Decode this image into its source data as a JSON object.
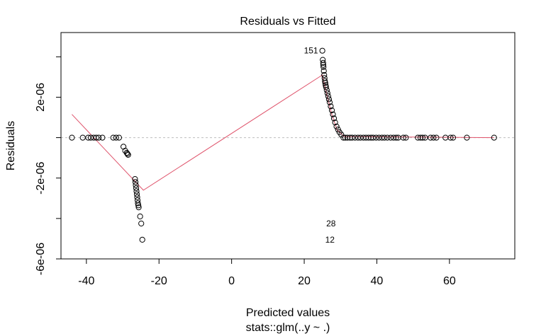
{
  "chart_data": {
    "type": "scatter",
    "title": "Residuals vs Fitted",
    "xlabel": "Predicted values",
    "subtitle": "stats::glm(..y ~ .)",
    "ylabel": "Residuals",
    "xlim": [
      -47,
      78
    ],
    "ylim": [
      -6e-06,
      5.2e-06
    ],
    "x_ticks": [
      -40,
      -20,
      0,
      20,
      40,
      60
    ],
    "x_tick_labels": [
      "-40",
      "-20",
      "0",
      "20",
      "40",
      "60"
    ],
    "y_ticks": [
      -6e-06,
      -2e-06,
      2e-06
    ],
    "y_tick_labels": [
      "-6e-06",
      "-2e-06",
      "2e-06"
    ],
    "y_minor_ticks": [
      -4e-06,
      0,
      4e-06
    ],
    "zero_line": 0,
    "grid": false,
    "colors": {
      "points": "#000000",
      "smooth": "#DF536B",
      "zero_line": "#BEBEBE"
    },
    "points": [
      {
        "x": -44.0,
        "y": 0
      },
      {
        "x": -41.0,
        "y": 0
      },
      {
        "x": -39.5,
        "y": 0
      },
      {
        "x": -38.8,
        "y": 0
      },
      {
        "x": -38.0,
        "y": 0
      },
      {
        "x": -37.3,
        "y": 0
      },
      {
        "x": -36.6,
        "y": 0
      },
      {
        "x": -35.6,
        "y": 0
      },
      {
        "x": -32.6,
        "y": 0
      },
      {
        "x": -31.8,
        "y": 0
      },
      {
        "x": -31.0,
        "y": 0
      },
      {
        "x": -29.8,
        "y": -4.5e-07
      },
      {
        "x": -29.3,
        "y": -6.5e-07
      },
      {
        "x": -28.9,
        "y": -7.5e-07
      },
      {
        "x": -28.7,
        "y": -8e-07
      },
      {
        "x": -28.5,
        "y": -8.5e-07
      },
      {
        "x": -26.6,
        "y": -2.05e-06
      },
      {
        "x": -26.5,
        "y": -2.2e-06
      },
      {
        "x": -26.4,
        "y": -2.35e-06
      },
      {
        "x": -26.3,
        "y": -2.5e-06
      },
      {
        "x": -26.2,
        "y": -2.65e-06
      },
      {
        "x": -26.1,
        "y": -2.8e-06
      },
      {
        "x": -26.0,
        "y": -2.95e-06
      },
      {
        "x": -25.9,
        "y": -3.1e-06
      },
      {
        "x": -25.8,
        "y": -3.25e-06
      },
      {
        "x": -25.7,
        "y": -3.35e-06
      },
      {
        "x": -25.6,
        "y": -3.45e-06
      },
      {
        "x": -25.2,
        "y": -3.9e-06
      },
      {
        "x": -24.9,
        "y": -4.25e-06
      },
      {
        "x": -24.6,
        "y": -5.05e-06
      },
      {
        "x": 25.0,
        "y": 4.3e-06
      },
      {
        "x": 25.1,
        "y": 3.85e-06
      },
      {
        "x": 25.2,
        "y": 3.7e-06
      },
      {
        "x": 25.25,
        "y": 3.6e-06
      },
      {
        "x": 25.3,
        "y": 3.5e-06
      },
      {
        "x": 25.4,
        "y": 3.3e-06
      },
      {
        "x": 25.5,
        "y": 3.1e-06
      },
      {
        "x": 25.6,
        "y": 2.95e-06
      },
      {
        "x": 25.7,
        "y": 2.8e-06
      },
      {
        "x": 25.8,
        "y": 2.7e-06
      },
      {
        "x": 25.9,
        "y": 2.6e-06
      },
      {
        "x": 26.0,
        "y": 2.5e-06
      },
      {
        "x": 26.2,
        "y": 2.35e-06
      },
      {
        "x": 26.4,
        "y": 2.2e-06
      },
      {
        "x": 26.6,
        "y": 2.05e-06
      },
      {
        "x": 26.8,
        "y": 1.9e-06
      },
      {
        "x": 27.0,
        "y": 1.75e-06
      },
      {
        "x": 27.3,
        "y": 1.55e-06
      },
      {
        "x": 27.6,
        "y": 1.35e-06
      },
      {
        "x": 27.9,
        "y": 1.15e-06
      },
      {
        "x": 28.2,
        "y": 9.5e-07
      },
      {
        "x": 28.5,
        "y": 7.5e-07
      },
      {
        "x": 28.9,
        "y": 5.5e-07
      },
      {
        "x": 29.3,
        "y": 4e-07
      },
      {
        "x": 29.7,
        "y": 2.7e-07
      },
      {
        "x": 30.2,
        "y": 1.5e-07
      },
      {
        "x": 30.8,
        "y": 0
      },
      {
        "x": 31.3,
        "y": 0
      },
      {
        "x": 31.9,
        "y": 0
      },
      {
        "x": 32.6,
        "y": 0
      },
      {
        "x": 33.2,
        "y": 0
      },
      {
        "x": 34.0,
        "y": 0
      },
      {
        "x": 34.8,
        "y": 0
      },
      {
        "x": 35.5,
        "y": 0
      },
      {
        "x": 36.3,
        "y": 0
      },
      {
        "x": 37.0,
        "y": 0
      },
      {
        "x": 37.7,
        "y": 0
      },
      {
        "x": 38.4,
        "y": 0
      },
      {
        "x": 39.0,
        "y": 0
      },
      {
        "x": 39.8,
        "y": 0
      },
      {
        "x": 40.6,
        "y": 0
      },
      {
        "x": 41.4,
        "y": 0
      },
      {
        "x": 42.1,
        "y": 0
      },
      {
        "x": 42.9,
        "y": 0
      },
      {
        "x": 43.8,
        "y": 0
      },
      {
        "x": 44.6,
        "y": 0
      },
      {
        "x": 45.3,
        "y": 0
      },
      {
        "x": 45.9,
        "y": 0
      },
      {
        "x": 47.3,
        "y": 0
      },
      {
        "x": 48.0,
        "y": 0
      },
      {
        "x": 51.3,
        "y": 0
      },
      {
        "x": 52.0,
        "y": 0
      },
      {
        "x": 52.6,
        "y": 0
      },
      {
        "x": 53.3,
        "y": 0
      },
      {
        "x": 54.8,
        "y": 0
      },
      {
        "x": 55.6,
        "y": 0
      },
      {
        "x": 56.4,
        "y": 0
      },
      {
        "x": 58.9,
        "y": 0
      },
      {
        "x": 60.3,
        "y": 0
      },
      {
        "x": 61.0,
        "y": 0
      },
      {
        "x": 64.8,
        "y": 0
      },
      {
        "x": 72.3,
        "y": 0
      }
    ],
    "smooth_line": [
      {
        "x": -44.0,
        "y": 1.15e-06
      },
      {
        "x": -24.3,
        "y": -2.6e-06
      },
      {
        "x": 25.0,
        "y": 3.1e-06
      },
      {
        "x": 26.0,
        "y": 2.3e-06
      },
      {
        "x": 27.5,
        "y": 1.2e-06
      },
      {
        "x": 29.0,
        "y": 4e-07
      },
      {
        "x": 31.0,
        "y": 5e-08
      },
      {
        "x": 72.3,
        "y": 0
      }
    ],
    "labels": [
      {
        "text": "151",
        "x": 25.0,
        "y": 4.3e-06,
        "side": "left"
      },
      {
        "text": "28",
        "x": 24.9,
        "y": -4.25e-06,
        "side": "right"
      },
      {
        "text": "12",
        "x": 24.6,
        "y": -5.05e-06,
        "side": "right"
      }
    ]
  }
}
